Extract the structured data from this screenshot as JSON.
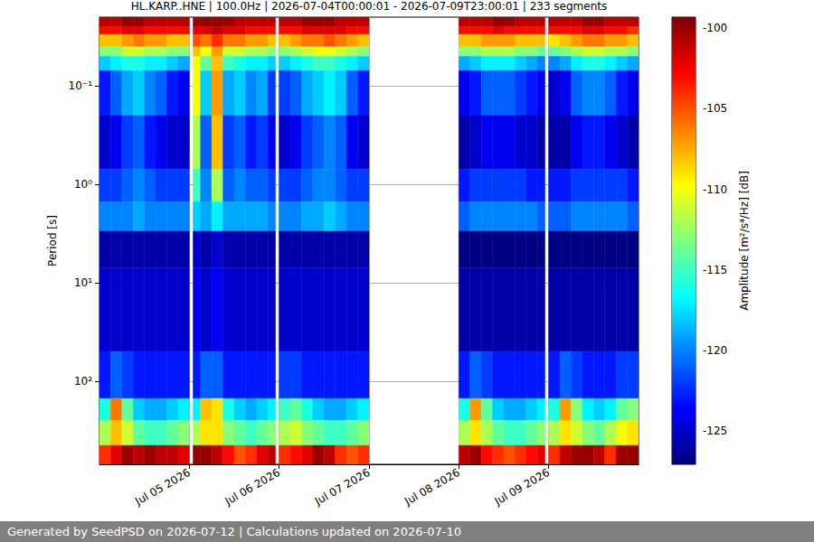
{
  "chart_data": {
    "type": "heatmap",
    "title": "HL.KARP..HNE | 100.0Hz | 2026-07-04T00:00:01 - 2026-07-09T23:00:01 | 233 segments",
    "ylabel": "Period [s]",
    "footer": "Generated by SeedPSD on 2026-07-12 | Calculations updated on 2026-07-10",
    "log": "y",
    "grid": true,
    "xlim": [
      "2026-07-04T00:00",
      "2026-07-10T00:00"
    ],
    "xticks": [
      {
        "value": "2026-07-05T00:00",
        "label": "Jul 05 2026"
      },
      {
        "value": "2026-07-06T00:00",
        "label": "Jul 06 2026"
      },
      {
        "value": "2026-07-07T00:00",
        "label": "Jul 07 2026"
      },
      {
        "value": "2026-07-08T00:00",
        "label": "Jul 08 2026"
      },
      {
        "value": "2026-07-09T00:00",
        "label": "Jul 09 2026"
      }
    ],
    "ylim": [
      0.02,
      700
    ],
    "yticks": [
      {
        "value": 0.1,
        "label": "10⁻¹"
      },
      {
        "value": 1,
        "label": "10⁰"
      },
      {
        "value": 10,
        "label": "10¹"
      },
      {
        "value": 100,
        "label": "10²"
      }
    ],
    "x_bins": [
      "2026-07-04T00:00",
      "2026-07-04T03:00",
      "2026-07-04T06:00",
      "2026-07-04T09:00",
      "2026-07-04T12:00",
      "2026-07-04T15:00",
      "2026-07-04T18:00",
      "2026-07-04T21:00",
      "2026-07-05T00:00",
      "2026-07-05T01:00",
      "2026-07-05T03:00",
      "2026-07-05T06:00",
      "2026-07-05T09:00",
      "2026-07-05T12:00",
      "2026-07-05T15:00",
      "2026-07-05T18:00",
      "2026-07-05T21:00",
      "2026-07-05T23:00",
      "2026-07-06T00:00",
      "2026-07-06T03:00",
      "2026-07-06T06:00",
      "2026-07-06T09:00",
      "2026-07-06T12:00",
      "2026-07-06T15:00",
      "2026-07-06T18:00",
      "2026-07-06T21:00",
      "2026-07-07T00:00",
      "2026-07-08T00:00",
      "2026-07-08T03:00",
      "2026-07-08T06:00",
      "2026-07-08T09:00",
      "2026-07-08T12:00",
      "2026-07-08T15:00",
      "2026-07-08T18:00",
      "2026-07-08T21:00",
      "2026-07-08T23:00",
      "2026-07-09T00:00",
      "2026-07-09T03:00",
      "2026-07-09T06:00",
      "2026-07-09T09:00",
      "2026-07-09T12:00",
      "2026-07-09T15:00",
      "2026-07-09T18:00",
      "2026-07-09T21:00",
      "2026-07-10T00:00"
    ],
    "y_bins": [
      0.02,
      0.025,
      0.03,
      0.04,
      0.05,
      0.07,
      0.2,
      0.7,
      1.5,
      3,
      7,
      50,
      150,
      250,
      450,
      700
    ],
    "values": [
      [
        -101,
        -101,
        -100,
        -100,
        -101,
        -101,
        -101,
        -101,
        null,
        -100,
        -100,
        -100,
        -100,
        -101,
        -101,
        -101,
        -101,
        null,
        -101,
        -101,
        -100,
        -100,
        -100,
        -101,
        -101,
        -101,
        null,
        -101,
        -101,
        -101,
        -100,
        -100,
        -101,
        -101,
        -101,
        null,
        -101,
        -101,
        -101,
        -100,
        -100,
        -101,
        -101,
        -101
      ],
      [
        -103,
        -103,
        -102,
        -102,
        -103,
        -103,
        -103,
        -103,
        null,
        -102,
        -102,
        -101,
        -102,
        -102,
        -103,
        -103,
        -103,
        null,
        -103,
        -103,
        -102,
        -102,
        -102,
        -102,
        -103,
        -103,
        null,
        -103,
        -103,
        -103,
        -102,
        -103,
        -103,
        -103,
        -103,
        null,
        -103,
        -103,
        -103,
        -102,
        -102,
        -103,
        -103,
        -104
      ],
      [
        -108,
        -108,
        -107,
        -106,
        -107,
        -107,
        -108,
        -108,
        null,
        -105,
        -106,
        -104,
        -106,
        -106,
        -107,
        -107,
        -108,
        null,
        -108,
        -107,
        -106,
        -106,
        -105,
        -106,
        -107,
        -108,
        null,
        -108,
        -108,
        -107,
        -107,
        -107,
        -108,
        -108,
        -108,
        null,
        -109,
        -108,
        -107,
        -106,
        -106,
        -107,
        -107,
        -108
      ],
      [
        -113,
        -113,
        -111,
        -111,
        -112,
        -112,
        -113,
        -113,
        null,
        -108,
        -110,
        -107,
        -111,
        -111,
        -112,
        -112,
        -113,
        null,
        -113,
        -112,
        -111,
        -110,
        -110,
        -111,
        -112,
        -113,
        null,
        -113,
        -113,
        -112,
        -112,
        -112,
        -113,
        -113,
        -114,
        null,
        -114,
        -113,
        -112,
        -111,
        -111,
        -112,
        -112,
        -113
      ],
      [
        -118,
        -117,
        -116,
        -116,
        -117,
        -117,
        -118,
        -119,
        null,
        -110,
        -114,
        -108,
        -115,
        -116,
        -117,
        -117,
        -118,
        null,
        -118,
        -117,
        -116,
        -115,
        -115,
        -116,
        -117,
        -118,
        null,
        -119,
        -118,
        -117,
        -117,
        -117,
        -118,
        -119,
        -120,
        null,
        -120,
        -119,
        -117,
        -116,
        -116,
        -117,
        -118,
        -119
      ],
      [
        -123,
        -121,
        -119,
        -118,
        -120,
        -121,
        -123,
        -124,
        null,
        -110,
        -118,
        -107,
        -119,
        -118,
        -120,
        -119,
        -122,
        null,
        -122,
        -121,
        -119,
        -118,
        -117,
        -118,
        -121,
        -123,
        null,
        -124,
        -123,
        -121,
        -121,
        -121,
        -122,
        -123,
        -124,
        null,
        -125,
        -124,
        -121,
        -120,
        -120,
        -121,
        -123,
        -124
      ],
      [
        -125,
        -124,
        -122,
        -121,
        -123,
        -124,
        -125,
        -125,
        null,
        -112,
        -121,
        -108,
        -122,
        -121,
        -123,
        -122,
        -124,
        null,
        -125,
        -124,
        -122,
        -121,
        -120,
        -121,
        -124,
        -125,
        null,
        -126,
        -125,
        -124,
        -124,
        -124,
        -125,
        -125,
        -126,
        null,
        -126,
        -126,
        -124,
        -123,
        -123,
        -124,
        -125,
        -126
      ],
      [
        -122,
        -122,
        -121,
        -120,
        -121,
        -122,
        -122,
        -122,
        null,
        -115,
        -120,
        -112,
        -121,
        -120,
        -121,
        -121,
        -122,
        null,
        -122,
        -122,
        -121,
        -120,
        -120,
        -121,
        -122,
        -122,
        null,
        -123,
        -122,
        -122,
        -122,
        -122,
        -122,
        -123,
        -123,
        null,
        -123,
        -123,
        -122,
        -122,
        -122,
        -122,
        -122,
        -123
      ],
      [
        -120,
        -120,
        -120,
        -119,
        -120,
        -120,
        -120,
        -120,
        null,
        -118,
        -119,
        -117,
        -119,
        -119,
        -119,
        -119,
        -120,
        null,
        -120,
        -120,
        -119,
        -119,
        -118,
        -119,
        -120,
        -120,
        null,
        -121,
        -120,
        -120,
        -120,
        -120,
        -120,
        -120,
        -121,
        null,
        -121,
        -121,
        -120,
        -120,
        -120,
        -120,
        -120,
        -121
      ],
      [
        -126,
        -126,
        -126,
        -126,
        -126,
        -126,
        -126,
        -126,
        null,
        -125,
        -126,
        -125,
        -126,
        -126,
        -126,
        -126,
        -126,
        null,
        -126,
        -126,
        -126,
        -126,
        -126,
        -126,
        -126,
        -126,
        null,
        -127,
        -127,
        -127,
        -127,
        -127,
        -127,
        -127,
        -127,
        null,
        -127,
        -127,
        -127,
        -127,
        -127,
        -127,
        -127,
        -127
      ],
      [
        -125,
        -125,
        -125,
        -125,
        -125,
        -125,
        -125,
        -125,
        null,
        -124,
        -125,
        -124,
        -125,
        -125,
        -125,
        -125,
        -125,
        null,
        -125,
        -125,
        -125,
        -125,
        -125,
        -125,
        -125,
        -125,
        null,
        -126,
        -126,
        -126,
        -126,
        -126,
        -126,
        -126,
        -126,
        null,
        -126,
        -126,
        -126,
        -126,
        -126,
        -126,
        -126,
        -126
      ],
      [
        -123,
        -121,
        -122,
        -123,
        -123,
        -123,
        -123,
        -123,
        null,
        -123,
        -121,
        -121,
        -123,
        -123,
        -123,
        -123,
        -123,
        null,
        -122,
        -122,
        -123,
        -123,
        -123,
        -123,
        -123,
        -123,
        null,
        -123,
        -121,
        -122,
        -123,
        -123,
        -123,
        -123,
        -123,
        null,
        -123,
        -121,
        -122,
        -123,
        -123,
        -123,
        -122,
        -122
      ],
      [
        -116,
        -106,
        -114,
        -118,
        -119,
        -119,
        -118,
        -117,
        null,
        -117,
        -108,
        -109,
        -116,
        -118,
        -119,
        -118,
        -117,
        null,
        -115,
        -114,
        -116,
        -118,
        -119,
        -119,
        -118,
        -117,
        null,
        -116,
        -107,
        -114,
        -118,
        -119,
        -119,
        -118,
        -117,
        null,
        -116,
        -107,
        -113,
        -117,
        -118,
        -117,
        -114,
        -113
      ],
      [
        -112,
        -108,
        -111,
        -114,
        -115,
        -115,
        -114,
        -113,
        null,
        -112,
        -109,
        -109,
        -113,
        -114,
        -115,
        -114,
        -113,
        null,
        -112,
        -111,
        -113,
        -114,
        -115,
        -115,
        -114,
        -113,
        null,
        -112,
        -109,
        -112,
        -114,
        -115,
        -115,
        -114,
        -113,
        null,
        -112,
        -109,
        -111,
        -113,
        -114,
        -112,
        -110,
        -109
      ],
      [
        -104,
        -102,
        -100,
        -101,
        -100,
        -101,
        -101,
        -102,
        null,
        -100,
        -100,
        -101,
        -103,
        -105,
        -104,
        -102,
        -101,
        null,
        -104,
        -103,
        -102,
        -100,
        -101,
        -104,
        -105,
        -104,
        null,
        -101,
        -100,
        -103,
        -104,
        -105,
        -104,
        -103,
        -102,
        null,
        -104,
        -101,
        -100,
        -100,
        -101,
        -104,
        -100,
        -100
      ]
    ],
    "colorbar": {
      "label": "Amplitude [m²/s⁴/Hz] [dB]",
      "range": [
        -127.1,
        -99.3
      ],
      "ticks": [
        -125,
        -120,
        -115,
        -110,
        -105,
        -100
      ]
    }
  }
}
